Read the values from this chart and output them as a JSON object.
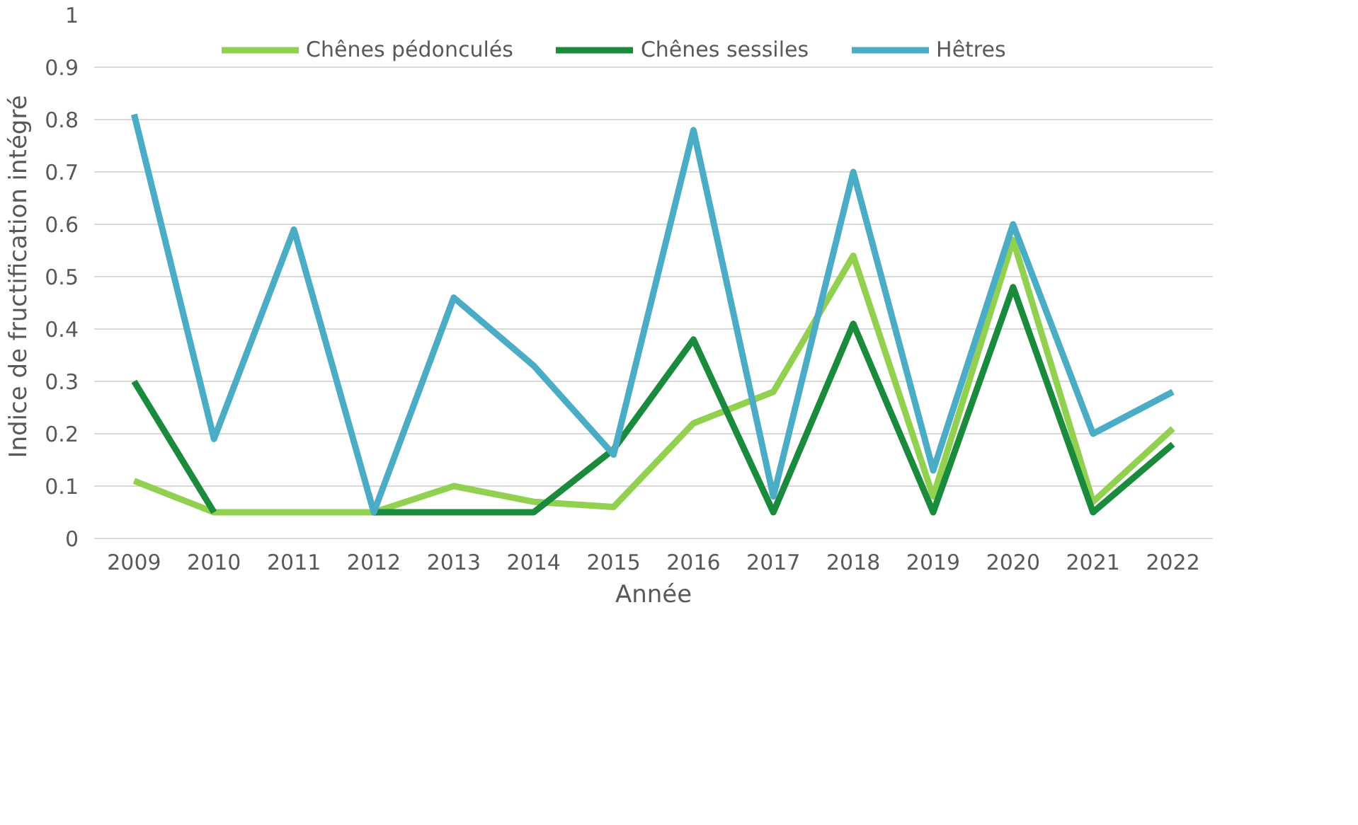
{
  "chart_data": {
    "type": "line",
    "xlabel": "Année",
    "ylabel": "Indice de fructification intégré",
    "categories": [
      "2009",
      "2010",
      "2011",
      "2012",
      "2013",
      "2014",
      "2015",
      "2016",
      "2017",
      "2018",
      "2019",
      "2020",
      "2021",
      "2022"
    ],
    "series": [
      {
        "name": "Chênes pédonculés",
        "color": "#92d050",
        "values": [
          0.11,
          0.05,
          0.05,
          0.05,
          0.1,
          0.07,
          0.06,
          0.22,
          0.28,
          0.54,
          0.08,
          0.57,
          0.07,
          0.21
        ]
      },
      {
        "name": "Chênes sessiles",
        "color": "#1a8a3c",
        "values": [
          0.3,
          0.05,
          null,
          0.05,
          0.05,
          0.05,
          0.17,
          0.38,
          0.05,
          0.41,
          0.05,
          0.48,
          0.05,
          0.18
        ]
      },
      {
        "name": "Hêtres",
        "color": "#4bacc6",
        "values": [
          0.81,
          0.19,
          0.59,
          0.05,
          0.46,
          0.33,
          0.16,
          0.78,
          0.08,
          0.7,
          0.13,
          0.6,
          0.2,
          0.28
        ]
      }
    ],
    "ylim": [
      0,
      1
    ],
    "yticks": [
      0,
      0.1,
      0.2,
      0.3,
      0.4,
      0.5,
      0.6,
      0.7,
      0.8,
      0.9,
      1
    ],
    "grid": "y",
    "legend": "top",
    "marker": "none",
    "line_style": "solid"
  }
}
